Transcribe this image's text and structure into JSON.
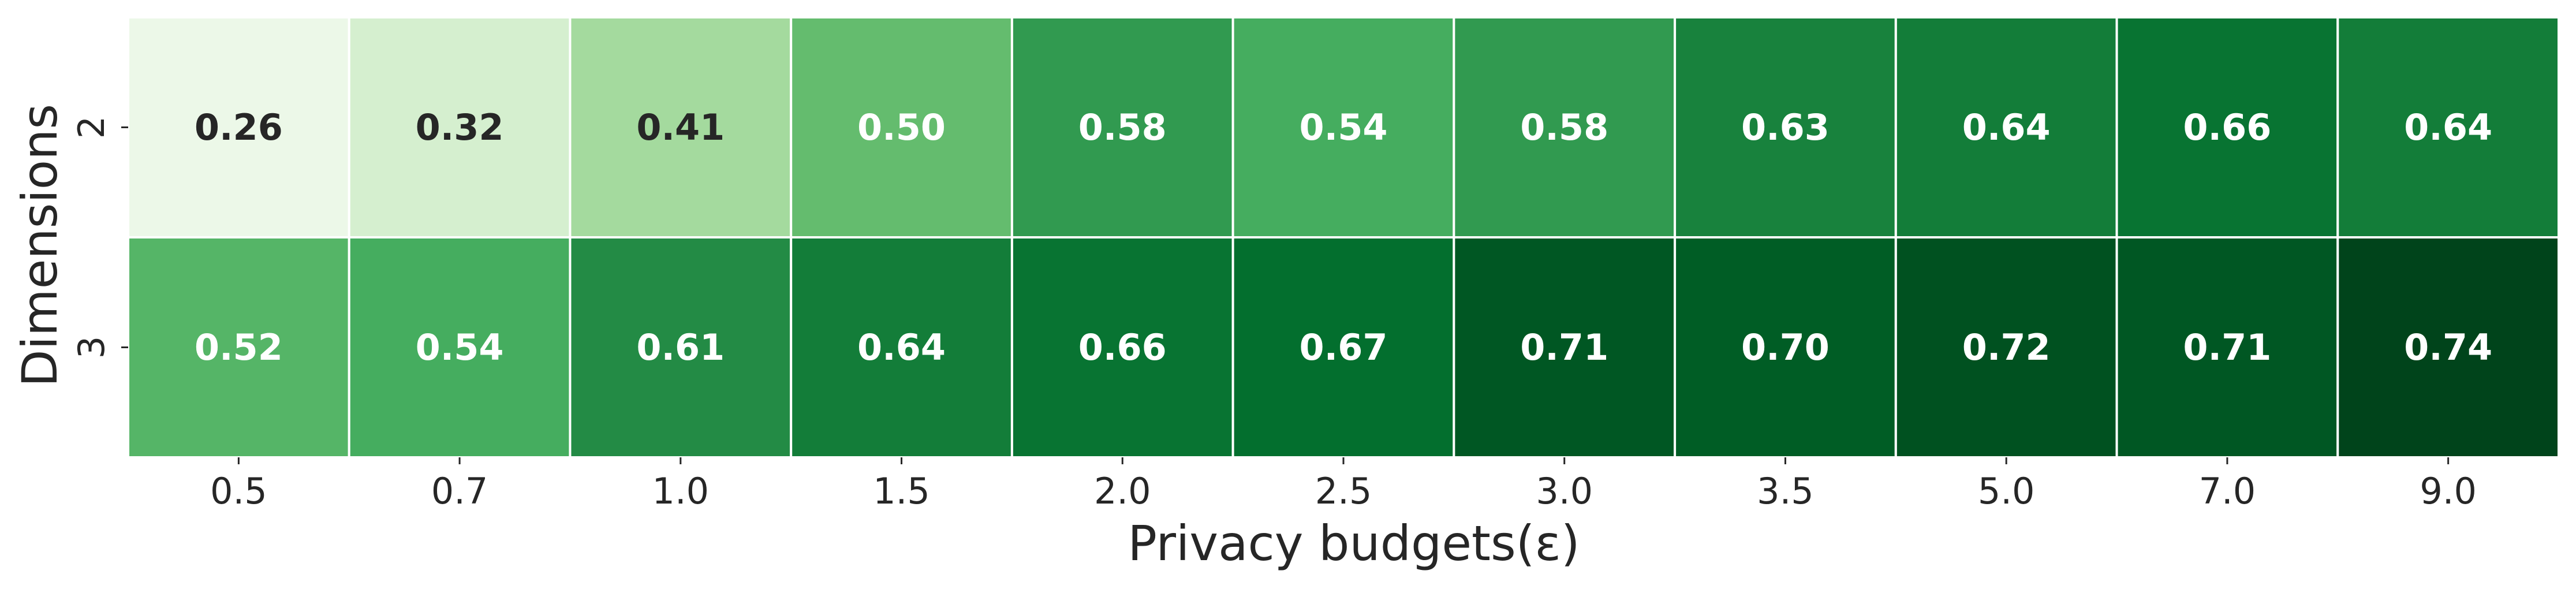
{
  "chart_data": {
    "type": "heatmap",
    "title": "",
    "xlabel": "Privacy budgets(ε)",
    "ylabel": "Dimensions",
    "x": [
      "0.5",
      "0.7",
      "1.0",
      "1.5",
      "2.0",
      "2.5",
      "3.0",
      "3.5",
      "5.0",
      "7.0",
      "9.0"
    ],
    "y": [
      "2",
      "3"
    ],
    "values": [
      [
        0.26,
        0.32,
        0.41,
        0.5,
        0.58,
        0.54,
        0.58,
        0.63,
        0.64,
        0.66,
        0.64
      ],
      [
        0.52,
        0.54,
        0.61,
        0.64,
        0.66,
        0.67,
        0.71,
        0.7,
        0.72,
        0.71,
        0.74
      ]
    ],
    "colormap": "Greens",
    "value_range": [
      0.22,
      0.74
    ],
    "annotations": true,
    "annotation_format": "0.00",
    "colors": {
      "dark_text": "#262626",
      "light_text": "#ffffff",
      "cell_border": "#ffffff"
    }
  }
}
